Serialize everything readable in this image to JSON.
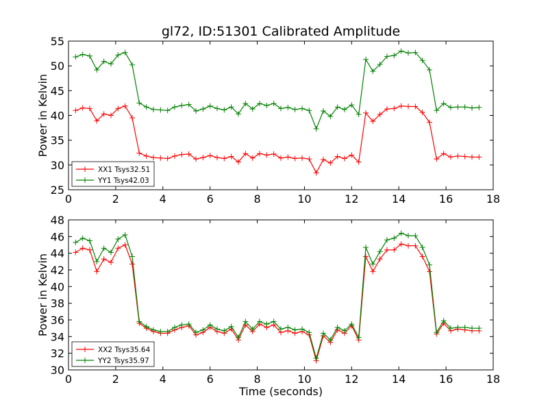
{
  "title": "gl72, ID:51301 Calibrated Amplitude",
  "colors": {
    "xx": "#ff0000",
    "yy": "#008000"
  },
  "chart_data": [
    {
      "type": "line",
      "xlabel": "",
      "ylabel": "Power in Kelvin",
      "xlim": [
        0,
        18
      ],
      "ylim": [
        25,
        55
      ],
      "xticks": [
        0,
        2,
        4,
        6,
        8,
        10,
        12,
        14,
        16,
        18
      ],
      "yticks": [
        25,
        30,
        35,
        40,
        45,
        50,
        55
      ],
      "legend": "lower-left",
      "x": [
        0.3,
        0.6,
        0.9,
        1.2,
        1.5,
        1.8,
        2.1,
        2.4,
        2.7,
        3.0,
        3.3,
        3.6,
        3.9,
        4.2,
        4.5,
        4.8,
        5.1,
        5.4,
        5.7,
        6.0,
        6.3,
        6.6,
        6.9,
        7.2,
        7.5,
        7.8,
        8.1,
        8.4,
        8.7,
        9.0,
        9.3,
        9.6,
        9.9,
        10.2,
        10.5,
        10.8,
        11.1,
        11.4,
        11.7,
        12.0,
        12.3,
        12.6,
        12.9,
        13.2,
        13.5,
        13.8,
        14.1,
        14.4,
        14.7,
        15.0,
        15.3,
        15.6,
        15.9,
        16.2,
        16.5,
        16.8,
        17.1,
        17.4
      ],
      "series": [
        {
          "name": "XX1 Tsys32.51",
          "color_key": "xx",
          "values": [
            41.0,
            41.5,
            41.4,
            38.9,
            40.3,
            40.0,
            41.4,
            41.9,
            39.5,
            32.4,
            31.8,
            31.5,
            31.4,
            31.3,
            31.8,
            32.1,
            32.2,
            31.2,
            31.5,
            31.9,
            31.5,
            31.3,
            31.7,
            30.6,
            32.3,
            31.4,
            32.3,
            32.0,
            32.2,
            31.4,
            31.6,
            31.3,
            31.4,
            31.2,
            28.4,
            31.1,
            30.4,
            31.7,
            31.3,
            32.0,
            30.6,
            40.5,
            38.8,
            40.2,
            41.3,
            41.4,
            41.9,
            41.8,
            41.8,
            40.6,
            38.6,
            31.2,
            32.3,
            31.6,
            31.8,
            31.7,
            31.6,
            31.6
          ]
        },
        {
          "name": "YY1 Tsys42.03",
          "color_key": "yy",
          "values": [
            51.8,
            52.3,
            52.0,
            49.2,
            50.9,
            50.4,
            52.2,
            52.7,
            50.2,
            42.5,
            41.7,
            41.2,
            41.1,
            41.0,
            41.7,
            42.0,
            42.2,
            40.9,
            41.3,
            41.9,
            41.4,
            41.1,
            41.7,
            40.3,
            42.4,
            41.3,
            42.4,
            42.0,
            42.4,
            41.4,
            41.6,
            41.2,
            41.4,
            41.0,
            37.3,
            40.9,
            39.8,
            41.7,
            41.2,
            42.1,
            40.2,
            51.3,
            48.9,
            50.3,
            51.9,
            52.1,
            53.0,
            52.6,
            52.7,
            51.1,
            49.2,
            41.0,
            42.4,
            41.6,
            41.7,
            41.7,
            41.5,
            41.6
          ]
        }
      ]
    },
    {
      "type": "line",
      "xlabel": "Time (seconds)",
      "ylabel": "Power in Kelvin",
      "xlim": [
        0,
        18
      ],
      "ylim": [
        30,
        48
      ],
      "xticks": [
        0,
        2,
        4,
        6,
        8,
        10,
        12,
        14,
        16,
        18
      ],
      "yticks": [
        30,
        32,
        34,
        36,
        38,
        40,
        42,
        44,
        46,
        48
      ],
      "legend": "lower-left",
      "x": [
        0.3,
        0.6,
        0.9,
        1.2,
        1.5,
        1.8,
        2.1,
        2.4,
        2.7,
        3.0,
        3.3,
        3.6,
        3.9,
        4.2,
        4.5,
        4.8,
        5.1,
        5.4,
        5.7,
        6.0,
        6.3,
        6.6,
        6.9,
        7.2,
        7.5,
        7.8,
        8.1,
        8.4,
        8.7,
        9.0,
        9.3,
        9.6,
        9.9,
        10.2,
        10.5,
        10.8,
        11.1,
        11.4,
        11.7,
        12.0,
        12.3,
        12.6,
        12.9,
        13.2,
        13.5,
        13.8,
        14.1,
        14.4,
        14.7,
        15.0,
        15.3,
        15.6,
        15.9,
        16.2,
        16.5,
        16.8,
        17.1,
        17.4
      ],
      "series": [
        {
          "name": "XX2 Tsys35.64",
          "color_key": "xx",
          "values": [
            44.1,
            44.6,
            44.4,
            41.8,
            43.3,
            42.9,
            44.6,
            45.0,
            42.7,
            35.6,
            35.0,
            34.6,
            34.4,
            34.4,
            34.8,
            35.1,
            35.3,
            34.2,
            34.5,
            35.1,
            34.6,
            34.4,
            34.9,
            33.6,
            35.4,
            34.6,
            35.5,
            35.1,
            35.4,
            34.5,
            34.7,
            34.4,
            34.6,
            34.2,
            31.1,
            34.1,
            33.3,
            34.8,
            34.4,
            35.3,
            33.6,
            43.6,
            41.8,
            43.3,
            44.4,
            44.4,
            45.1,
            44.9,
            44.9,
            43.6,
            41.8,
            34.3,
            35.6,
            34.7,
            34.9,
            34.8,
            34.7,
            34.7
          ]
        },
        {
          "name": "YY2 Tsys35.97",
          "color_key": "yy",
          "values": [
            45.3,
            45.8,
            45.5,
            43.0,
            44.6,
            44.1,
            45.7,
            46.2,
            43.6,
            35.8,
            35.2,
            34.8,
            34.6,
            34.6,
            35.1,
            35.4,
            35.5,
            34.5,
            34.8,
            35.4,
            34.9,
            34.7,
            35.2,
            33.9,
            35.8,
            34.9,
            35.8,
            35.5,
            35.8,
            34.9,
            35.1,
            34.8,
            34.9,
            34.5,
            31.4,
            34.4,
            33.6,
            35.1,
            34.7,
            35.5,
            33.9,
            44.7,
            42.7,
            44.2,
            45.6,
            45.8,
            46.4,
            46.1,
            46.1,
            44.7,
            42.6,
            34.5,
            35.9,
            35.0,
            35.1,
            35.1,
            35.0,
            35.0
          ]
        }
      ]
    }
  ]
}
